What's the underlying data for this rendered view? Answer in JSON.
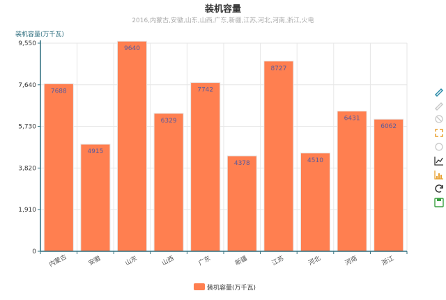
{
  "chart_data": {
    "type": "bar",
    "title": "装机容量",
    "subtitle": "2016,内蒙古,安徽,山东,山西,广东,新疆,江苏,河北,河南,浙江,火电",
    "ylabel": "装机容量(万千瓦)",
    "xlabel": "",
    "categories": [
      "内蒙古",
      "安徽",
      "山东",
      "山西",
      "广东",
      "新疆",
      "江苏",
      "河北",
      "河南",
      "浙江"
    ],
    "series": [
      {
        "name": "装机容量(万千瓦)",
        "values": [
          7688,
          4915,
          9640,
          6329,
          7742,
          4378,
          8727,
          4510,
          6431,
          6062
        ]
      }
    ],
    "ylim": [
      0,
      9550
    ],
    "yticks": [
      0,
      1910,
      3820,
      5730,
      7640,
      9550
    ],
    "ytick_labels": [
      "0",
      "1,910",
      "3,820",
      "5,730",
      "7,640",
      "9,550"
    ],
    "grid": true,
    "legend_position": "bottom-center",
    "colors": {
      "bar": "#ff7f50",
      "bar_edge": "#e8e8e8",
      "axis": "#2f6f7f",
      "grid": "#e6e6e6",
      "bar_label": "#5a5a9c"
    }
  },
  "toolbox": {
    "icons": [
      {
        "name": "mark-icon",
        "color": "#2a8aa8"
      },
      {
        "name": "mark-undo-icon",
        "color": "#c8c8c8"
      },
      {
        "name": "mark-clear-icon",
        "color": "#c8c8c8"
      },
      {
        "name": "data-zoom-icon",
        "color": "#e8a030"
      },
      {
        "name": "data-zoom-reset-icon",
        "color": "#c8c8c8"
      },
      {
        "name": "line-chart-icon",
        "color": "#333333"
      },
      {
        "name": "bar-chart-icon",
        "color": "#e8a030"
      },
      {
        "name": "restore-icon",
        "color": "#333333"
      },
      {
        "name": "save-image-icon",
        "color": "#3aa040"
      }
    ]
  }
}
